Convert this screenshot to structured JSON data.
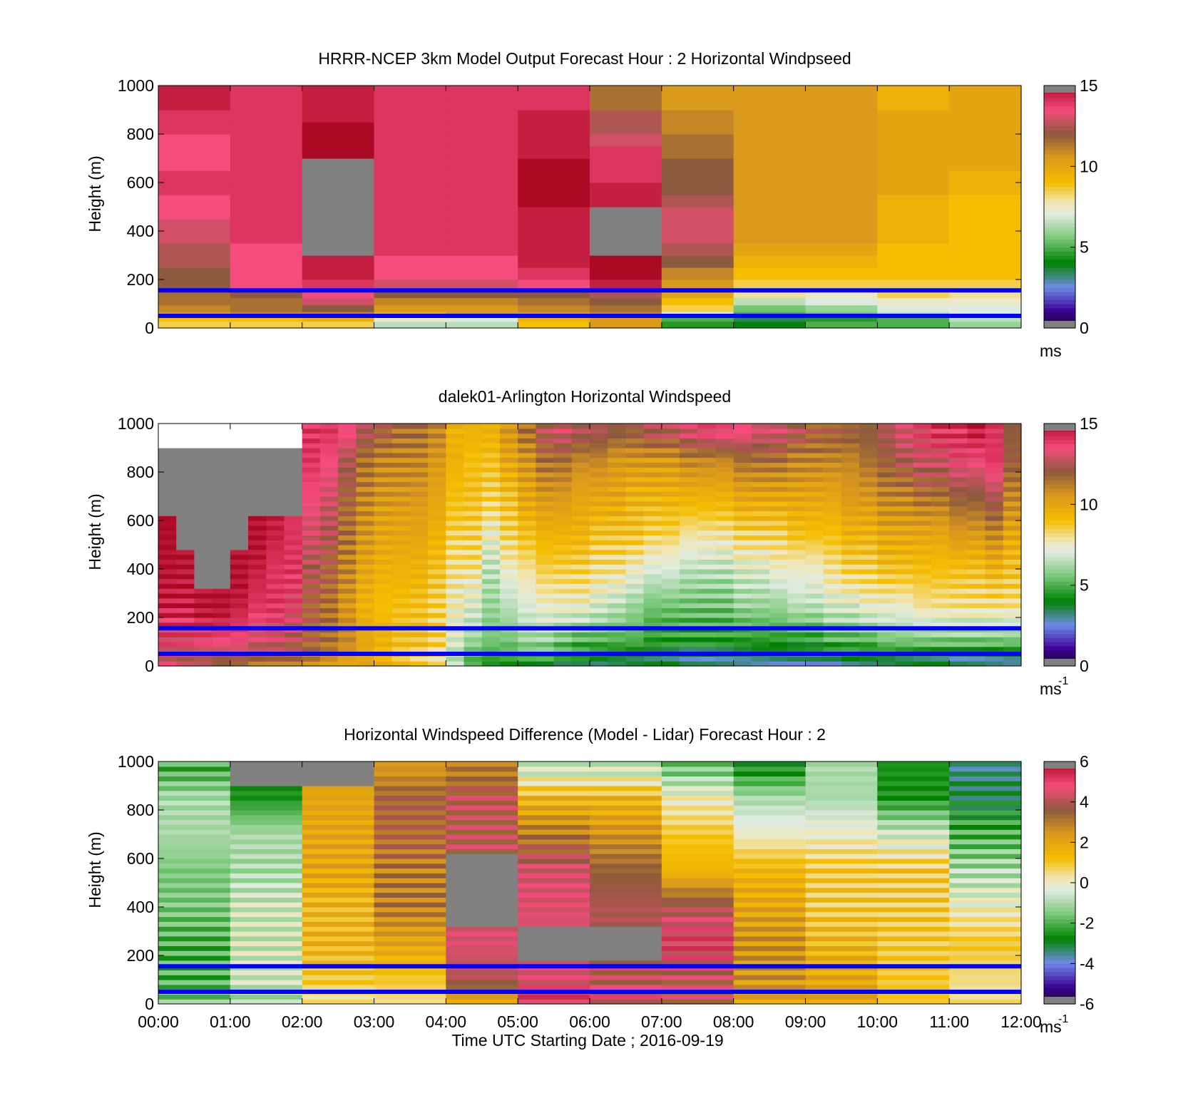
{
  "figure": {
    "xtick_labels": [
      "00:00",
      "01:00",
      "02:00",
      "03:00",
      "04:00",
      "05:00",
      "06:00",
      "07:00",
      "08:00",
      "09:00",
      "10:00",
      "11:00",
      "12:00"
    ],
    "xlabel": "Time UTC  Starting Date ; 2016-09-19"
  },
  "chart_data": [
    {
      "type": "heatmap",
      "title": "HRRR-NCEP 3km Model Output   Forecast Hour : 2 Horizontal Windpseed",
      "ylabel": "Height (m)",
      "xlim": [
        0,
        12
      ],
      "ylim": [
        0,
        1000
      ],
      "ytick_labels": [
        "0",
        "200",
        "400",
        "600",
        "800",
        "1000"
      ],
      "colorbar": {
        "min": 0,
        "max": 15,
        "tick_labels": [
          "0",
          "5",
          "10",
          "15"
        ],
        "unit_label": "ms",
        "unit_sup": ""
      },
      "reference_lines_m": [
        50,
        155
      ],
      "missing_color": "#808080",
      "time_hours": [
        0,
        1,
        2,
        3,
        4,
        5,
        6,
        7,
        8,
        9,
        10,
        11
      ],
      "heights_m": [
        20,
        35,
        55,
        80,
        110,
        140,
        175,
        225,
        275,
        325,
        375,
        425,
        475,
        525,
        575,
        625,
        675,
        725,
        775,
        825,
        875,
        925,
        975
      ],
      "values": [
        [
          8.5,
          8.5,
          8.5,
          6.5,
          6.5,
          9.0,
          10.5,
          4.5,
          4.0,
          5.0,
          5.0,
          6.0
        ],
        [
          9.0,
          9.0,
          9.5,
          7.5,
          7.0,
          9.5,
          10.5,
          5.0,
          3.5,
          4.5,
          5.0,
          6.5
        ],
        [
          10.5,
          11.0,
          11.0,
          9.5,
          10.5,
          10.5,
          11.0,
          7.0,
          5.0,
          5.5,
          6.5,
          7.0
        ],
        [
          11.0,
          11.5,
          12.0,
          10.5,
          10.5,
          11.0,
          11.5,
          8.5,
          5.5,
          6.0,
          7.0,
          7.0
        ],
        [
          11.5,
          11.5,
          13.0,
          11.0,
          11.0,
          11.5,
          12.0,
          9.0,
          6.5,
          7.0,
          7.5,
          7.5
        ],
        [
          11.5,
          12.0,
          13.5,
          12.0,
          12.0,
          12.0,
          12.5,
          10.0,
          8.0,
          7.5,
          8.5,
          8.0
        ],
        [
          12.0,
          13.5,
          14.0,
          13.0,
          13.0,
          13.5,
          14.5,
          10.5,
          8.5,
          8.5,
          8.5,
          8.5
        ],
        [
          12.0,
          13.5,
          14.5,
          13.5,
          13.5,
          14.0,
          15.0,
          11.0,
          9.0,
          9.0,
          9.0,
          9.0
        ],
        [
          12.5,
          13.5,
          14.5,
          13.5,
          13.5,
          14.5,
          15.0,
          12.0,
          9.5,
          9.5,
          9.0,
          9.0
        ],
        [
          12.5,
          13.5,
          null,
          14.0,
          14.0,
          14.5,
          null,
          12.5,
          10.0,
          10.0,
          9.0,
          9.0
        ],
        [
          13.0,
          14.0,
          null,
          14.0,
          14.0,
          14.5,
          null,
          13.0,
          10.5,
          10.5,
          9.5,
          9.0
        ],
        [
          13.0,
          14.0,
          null,
          14.0,
          14.0,
          14.5,
          null,
          13.0,
          10.5,
          10.5,
          9.5,
          9.0
        ],
        [
          13.5,
          14.0,
          null,
          14.0,
          14.0,
          14.5,
          null,
          13.0,
          10.5,
          10.5,
          9.5,
          9.0
        ],
        [
          13.5,
          14.0,
          null,
          14.0,
          14.0,
          15.0,
          14.5,
          12.5,
          10.5,
          10.5,
          9.5,
          9.0
        ],
        [
          14.0,
          14.0,
          null,
          14.0,
          14.0,
          15.0,
          14.5,
          12.0,
          10.5,
          10.5,
          10.0,
          9.5
        ],
        [
          14.0,
          14.0,
          null,
          14.0,
          14.0,
          15.0,
          14.0,
          12.0,
          10.5,
          10.5,
          10.0,
          9.5
        ],
        [
          13.5,
          14.0,
          null,
          14.0,
          14.0,
          15.0,
          14.0,
          12.0,
          10.5,
          10.5,
          10.0,
          10.0
        ],
        [
          13.5,
          14.0,
          15.5,
          14.0,
          14.0,
          14.5,
          14.0,
          11.5,
          10.5,
          10.5,
          10.0,
          10.0
        ],
        [
          13.5,
          14.0,
          15.5,
          14.0,
          14.0,
          14.5,
          13.0,
          11.5,
          10.5,
          10.5,
          10.0,
          10.0
        ],
        [
          14.0,
          14.0,
          15.0,
          14.0,
          14.0,
          14.5,
          12.5,
          11.0,
          10.5,
          10.5,
          10.0,
          10.0
        ],
        [
          14.0,
          14.0,
          14.5,
          14.0,
          14.0,
          14.5,
          12.5,
          11.0,
          10.5,
          10.5,
          10.0,
          10.0
        ],
        [
          14.5,
          14.0,
          14.5,
          14.0,
          14.0,
          14.0,
          11.5,
          10.5,
          10.5,
          10.5,
          9.5,
          10.0
        ],
        [
          14.5,
          14.0,
          14.5,
          14.0,
          14.0,
          14.0,
          11.5,
          10.5,
          10.5,
          10.5,
          9.5,
          10.0
        ]
      ]
    },
    {
      "type": "heatmap",
      "title": "dalek01-Arlington  Horizontal Windspeed",
      "ylabel": "Height (m)",
      "xlim": [
        0,
        12
      ],
      "ylim": [
        0,
        1000
      ],
      "ytick_labels": [
        "0",
        "200",
        "400",
        "600",
        "800",
        "1000"
      ],
      "colorbar": {
        "min": 0,
        "max": 15,
        "tick_labels": [
          "0",
          "5",
          "10",
          "15"
        ],
        "unit_label": "ms",
        "unit_sup": "-1"
      },
      "reference_lines_m": [
        50,
        155
      ],
      "missing_color": "#808080",
      "time_hours": [
        0,
        0.25,
        0.5,
        0.75,
        1,
        1.25,
        1.5,
        1.75,
        2,
        2.25,
        2.5,
        2.75,
        3,
        3.25,
        3.5,
        3.75,
        4,
        4.25,
        4.5,
        4.75,
        5,
        5.25,
        5.5,
        5.75,
        6,
        6.25,
        6.5,
        6.75,
        7,
        7.25,
        7.5,
        7.75,
        8,
        8.25,
        8.5,
        8.75,
        9,
        9.25,
        9.5,
        9.75,
        10,
        10.25,
        10.5,
        10.75,
        11,
        11.25,
        11.5,
        11.75
      ],
      "profile_heights_m": [
        25,
        100,
        250,
        400,
        550,
        700,
        850,
        960
      ],
      "profile_values": [
        [
          13,
          13.5,
          14.5,
          15,
          15,
          null,
          null,
          null
        ],
        [
          12.5,
          13.5,
          14.5,
          15,
          null,
          null,
          null,
          null
        ],
        [
          12.5,
          13.5,
          15,
          null,
          null,
          null,
          null,
          null
        ],
        [
          12,
          13.5,
          15,
          null,
          null,
          null,
          null,
          null
        ],
        [
          12,
          13.5,
          14.5,
          15,
          null,
          null,
          null,
          null
        ],
        [
          11.5,
          13,
          14,
          14.5,
          15,
          null,
          null,
          null
        ],
        [
          11.5,
          13,
          14,
          14,
          14.5,
          null,
          null,
          null
        ],
        [
          11.5,
          12.5,
          13.5,
          14,
          14,
          null,
          null,
          null
        ],
        [
          11,
          12,
          12,
          12.5,
          13,
          13.5,
          14,
          14
        ],
        [
          10.5,
          11.5,
          11.5,
          12,
          12.5,
          13,
          13.5,
          14
        ],
        [
          10,
          11,
          10.5,
          11,
          11.5,
          12,
          12.5,
          13.5
        ],
        [
          10,
          10,
          9.5,
          10,
          10.5,
          11,
          11.5,
          12.5
        ],
        [
          9.5,
          9.5,
          9,
          9.5,
          10,
          10.5,
          11,
          12
        ],
        [
          9,
          9,
          9,
          9.5,
          10,
          10.5,
          11,
          11.5
        ],
        [
          8.5,
          9,
          9,
          9.5,
          10,
          10.5,
          11,
          11.5
        ],
        [
          8,
          8.5,
          8.5,
          9,
          9.5,
          10,
          10.5,
          11
        ],
        [
          6.5,
          7,
          7.5,
          8,
          8.5,
          9,
          9.5,
          9.5
        ],
        [
          5,
          6,
          7,
          8,
          8.5,
          9,
          9,
          9.5
        ],
        [
          4.5,
          5.5,
          6,
          6.5,
          7.5,
          8.5,
          9,
          9.5
        ],
        [
          4.5,
          5.5,
          6.5,
          7.5,
          8.5,
          9,
          10,
          10.5
        ],
        [
          4.5,
          6,
          7,
          8,
          9,
          10,
          10.5,
          11.5
        ],
        [
          4.5,
          6,
          7.5,
          8.5,
          9.5,
          10.5,
          11.5,
          12.5
        ],
        [
          4,
          5.5,
          7.5,
          8.5,
          9.5,
          10.5,
          11.5,
          13
        ],
        [
          4,
          5,
          7.5,
          8.5,
          9.5,
          10,
          11,
          12.5
        ],
        [
          3.5,
          5,
          7,
          8,
          9,
          10,
          11,
          12.5
        ],
        [
          3.5,
          5,
          6.5,
          8,
          9,
          10,
          10.5,
          12
        ],
        [
          3.5,
          5,
          6,
          7.5,
          9,
          9.5,
          10.5,
          12
        ],
        [
          3.5,
          4.5,
          5.5,
          7,
          8.5,
          9.5,
          10.5,
          12.5
        ],
        [
          3.5,
          4.5,
          5.5,
          7,
          8.5,
          9.5,
          10.5,
          12.5
        ],
        [
          3,
          4.5,
          5.5,
          6.5,
          8,
          9.5,
          11,
          13
        ],
        [
          3,
          4.5,
          5.5,
          6.5,
          8,
          9.5,
          11,
          13.5
        ],
        [
          3,
          4.5,
          5.5,
          6.5,
          8,
          9.5,
          11,
          13.5
        ],
        [
          3,
          4.5,
          6,
          7,
          8.5,
          10,
          11.5,
          13.5
        ],
        [
          3,
          4.5,
          6,
          7,
          8.5,
          10,
          11.5,
          13
        ],
        [
          3,
          4.5,
          6,
          7.5,
          8.5,
          10,
          11.5,
          13
        ],
        [
          3,
          4.5,
          6.5,
          7.5,
          9,
          10,
          11,
          12.5
        ],
        [
          3,
          4.5,
          6.5,
          7.5,
          9,
          10,
          11,
          12
        ],
        [
          3,
          5,
          7,
          8,
          9,
          10,
          11,
          12
        ],
        [
          3.5,
          5,
          7,
          8.5,
          9.5,
          10.5,
          11,
          12
        ],
        [
          3.5,
          5,
          7.5,
          8.5,
          9.5,
          10.5,
          11.5,
          12
        ],
        [
          3.5,
          5.5,
          7.5,
          9,
          10,
          11,
          12,
          12.5
        ],
        [
          3.5,
          5.5,
          7.5,
          9,
          10,
          11,
          12.5,
          13
        ],
        [
          3.5,
          5.5,
          8,
          9,
          10,
          11.5,
          13,
          13.5
        ],
        [
          3.5,
          5.5,
          8,
          9,
          10,
          11.5,
          13,
          14
        ],
        [
          3,
          5.5,
          8,
          9,
          10.5,
          12,
          13.5,
          14
        ],
        [
          3,
          5.5,
          8,
          9,
          10.5,
          12,
          13.5,
          14.5
        ],
        [
          3,
          5.5,
          8,
          9.5,
          11,
          12.5,
          14,
          14
        ],
        [
          3,
          5.5,
          8,
          9,
          10,
          11,
          12,
          12
        ]
      ]
    },
    {
      "type": "heatmap",
      "title": "Horizontal Windspeed Difference (Model - Lidar) Forecast Hour : 2",
      "ylabel": "Height (m)",
      "xlim": [
        0,
        12
      ],
      "ylim": [
        0,
        1000
      ],
      "ytick_labels": [
        "0",
        "200",
        "400",
        "600",
        "800",
        "1000"
      ],
      "colorbar": {
        "min": -6,
        "max": 6,
        "tick_labels": [
          "-6",
          "-4",
          "-2",
          "0",
          "2",
          "4",
          "6"
        ],
        "unit_label": "ms",
        "unit_sup": "-1"
      },
      "reference_lines_m": [
        50,
        155
      ],
      "missing_color": "#808080",
      "time_hours": [
        0,
        1,
        2,
        3,
        4,
        5,
        6,
        7,
        8,
        9,
        10,
        11
      ],
      "profile_heights_m": [
        25,
        100,
        250,
        400,
        550,
        700,
        850,
        960
      ],
      "profile_values": [
        [
          -1.5,
          -2,
          -2,
          -1.5,
          -1.5,
          -1,
          -1,
          -2
        ],
        [
          -1,
          -0.5,
          -0.5,
          -0.5,
          -1,
          -1,
          -2.5,
          null
        ],
        [
          0.5,
          1,
          1.5,
          1.5,
          2,
          2,
          2,
          null
        ],
        [
          0.5,
          1,
          2,
          3,
          3,
          3.5,
          3.5,
          2.5
        ],
        [
          2,
          4,
          4.5,
          null,
          null,
          4,
          4,
          3
        ],
        [
          5,
          4.5,
          null,
          4.5,
          4.5,
          3,
          1.5,
          -0.5
        ],
        [
          4.5,
          4,
          null,
          4,
          3.5,
          2.5,
          1.5,
          -0.5
        ],
        [
          4,
          4,
          5,
          4,
          1.5,
          1,
          0,
          -1.5
        ],
        [
          2,
          2.5,
          2.5,
          2,
          1.5,
          0,
          -1,
          -2.5
        ],
        [
          2,
          2,
          1.5,
          1,
          1,
          0,
          -1,
          -1
        ],
        [
          1,
          1,
          1,
          1,
          1,
          -0.5,
          -2.5,
          -2.5
        ],
        [
          0.5,
          0.5,
          1,
          0,
          -1,
          -2,
          -3,
          -3.5
        ]
      ]
    }
  ]
}
